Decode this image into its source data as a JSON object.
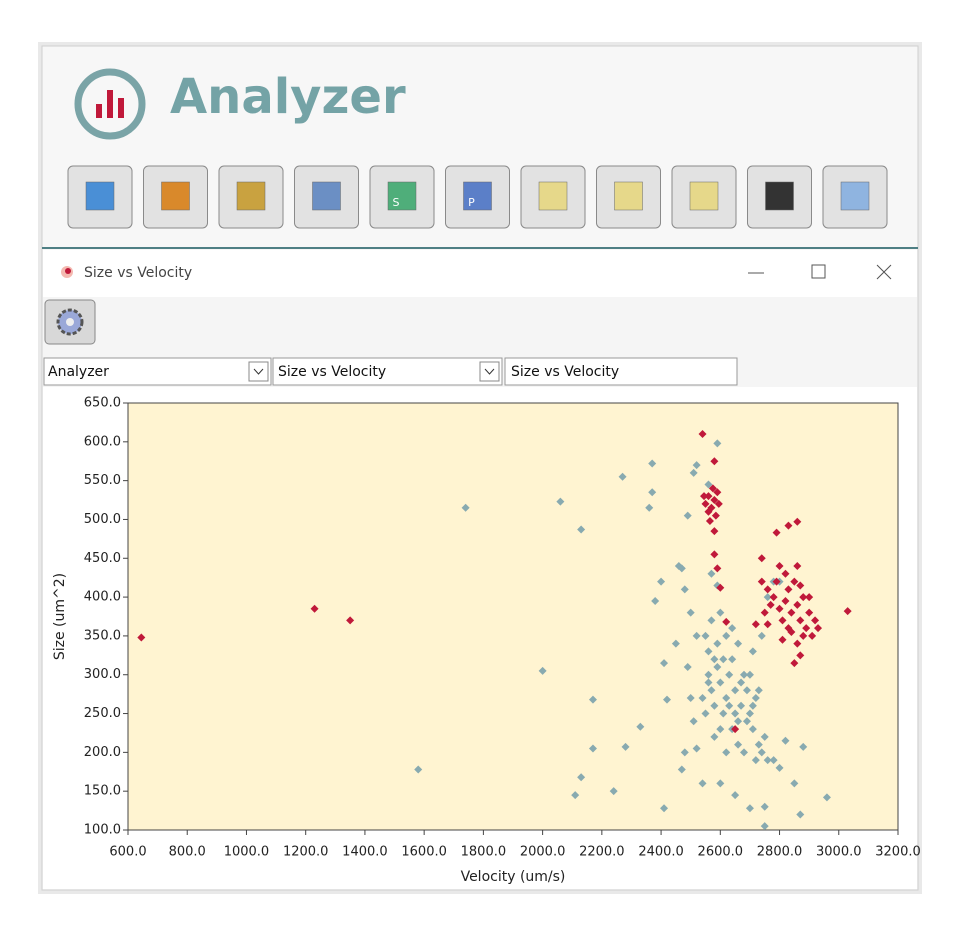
{
  "app": {
    "title": "Analyzer"
  },
  "toolbar": {
    "icon_letters": [
      "S",
      "P"
    ]
  },
  "window": {
    "title": "Size vs Velocity"
  },
  "selectors": [
    "Analyzer",
    "Size vs Velocity",
    "Size vs Velocity"
  ],
  "chart_data": {
    "type": "scatter",
    "xlabel": "Velocity (um/s)",
    "ylabel": "Size (um^2)",
    "xlim": [
      600,
      3200
    ],
    "ylim": [
      100,
      650
    ],
    "xticks": [
      {
        "value": 600,
        "label": "600.0"
      },
      {
        "value": 800,
        "label": "800.0"
      },
      {
        "value": 1000,
        "label": "1000.0"
      },
      {
        "value": 1200,
        "label": "1200.0"
      },
      {
        "value": 1400,
        "label": "1400.0"
      },
      {
        "value": 1600,
        "label": "1600.0"
      },
      {
        "value": 1800,
        "label": "1800.0"
      },
      {
        "value": 2000,
        "label": "2000.0"
      },
      {
        "value": 2200,
        "label": "2200.0"
      },
      {
        "value": 2400,
        "label": "2400.0"
      },
      {
        "value": 2600,
        "label": "2600.0"
      },
      {
        "value": 2800,
        "label": "2800.0"
      },
      {
        "value": 3000,
        "label": "3000.0"
      },
      {
        "value": 3200,
        "label": "3200.0"
      }
    ],
    "yticks": [
      {
        "value": 100,
        "label": "100.0"
      },
      {
        "value": 150,
        "label": "150.0"
      },
      {
        "value": 200,
        "label": "200.0"
      },
      {
        "value": 250,
        "label": "250.0"
      },
      {
        "value": 300,
        "label": "300.0"
      },
      {
        "value": 350,
        "label": "350.0"
      },
      {
        "value": 400,
        "label": "400.0"
      },
      {
        "value": 450,
        "label": "450.0"
      },
      {
        "value": 500,
        "label": "500.0"
      },
      {
        "value": 550,
        "label": "550.0"
      },
      {
        "value": 600,
        "label": "600.0"
      },
      {
        "value": 650,
        "label": "650.0"
      }
    ],
    "plot_background": "#fff4d1",
    "series": [
      {
        "color": "#88aab0",
        "x": [
          1740,
          2000,
          2060,
          2130,
          2170,
          2170,
          2110,
          2130,
          2240,
          2280,
          2270,
          2330,
          2370,
          2370,
          2360,
          2410,
          1580,
          2410,
          2420,
          2460,
          2470,
          2480,
          2490,
          2510,
          2520,
          2590,
          2560,
          2490,
          2500,
          2510,
          2480,
          2470,
          2520,
          2540,
          2560,
          2560,
          2570,
          2580,
          2590,
          2600,
          2610,
          2620,
          2630,
          2640,
          2650,
          2660,
          2670,
          2680,
          2690,
          2700,
          2710,
          2720,
          2730,
          2740,
          2750,
          2760,
          2780,
          2800,
          2820,
          2850,
          2880,
          2870,
          2960,
          2750,
          2750,
          2700,
          2650,
          2600,
          2550,
          2570,
          2600,
          2620,
          2640,
          2660,
          2540,
          2550,
          2580,
          2600,
          2620,
          2640,
          2660,
          2680,
          2700,
          2710,
          2720,
          2740,
          2760,
          2780,
          2800,
          2570,
          2590,
          2520,
          2500,
          2400,
          2450,
          2380,
          2610,
          2630,
          2650,
          2670,
          2690,
          2710,
          2730,
          2590,
          2560,
          2580
        ],
        "values": [
          515,
          305,
          523,
          487,
          268,
          205,
          145,
          168,
          150,
          207,
          555,
          233,
          572,
          535,
          515,
          128,
          178,
          315,
          268,
          440,
          437,
          410,
          505,
          560,
          570,
          598,
          545,
          310,
          270,
          240,
          200,
          178,
          205,
          160,
          330,
          300,
          280,
          260,
          310,
          290,
          250,
          270,
          300,
          320,
          280,
          240,
          260,
          300,
          280,
          250,
          230,
          270,
          210,
          200,
          220,
          190,
          190,
          180,
          215,
          160,
          207,
          120,
          142,
          130,
          105,
          128,
          145,
          160,
          350,
          370,
          380,
          350,
          360,
          340,
          270,
          250,
          220,
          230,
          200,
          230,
          210,
          200,
          300,
          330,
          190,
          350,
          400,
          420,
          420,
          430,
          415,
          350,
          380,
          420,
          340,
          395,
          320,
          260,
          250,
          290,
          240,
          260,
          280,
          340,
          290,
          320
        ]
      },
      {
        "color": "#c0193a",
        "x": [
          645,
          1230,
          1350,
          2540,
          2580,
          3030,
          2860,
          2830,
          2790,
          2740,
          2580,
          2590,
          2600,
          2650,
          2620,
          2720,
          2760,
          2550,
          2560,
          2570,
          2580,
          2590,
          2560,
          2575,
          2585,
          2545,
          2595,
          2565,
          2580,
          2780,
          2800,
          2820,
          2840,
          2860,
          2880,
          2810,
          2830,
          2850,
          2870,
          2890,
          2900,
          2820,
          2860,
          2790,
          2770,
          2880,
          2910,
          2840,
          2860,
          2850,
          2920,
          2760,
          2800,
          2830,
          2870,
          2900,
          2930,
          2750,
          2740,
          2810,
          2870
        ],
        "values": [
          348,
          385,
          370,
          610,
          575,
          382,
          497,
          492,
          483,
          450,
          455,
          437,
          412,
          230,
          368,
          365,
          365,
          520,
          530,
          515,
          525,
          535,
          510,
          540,
          505,
          530,
          520,
          498,
          485,
          400,
          385,
          395,
          380,
          390,
          400,
          370,
          410,
          420,
          370,
          360,
          380,
          430,
          440,
          420,
          390,
          350,
          350,
          355,
          340,
          315,
          370,
          410,
          440,
          360,
          415,
          400,
          360,
          380,
          420,
          345,
          325
        ]
      }
    ]
  }
}
